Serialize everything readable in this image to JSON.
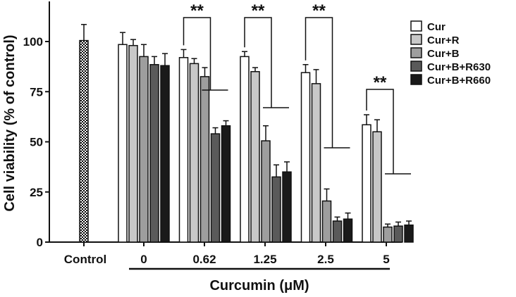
{
  "chart_data": {
    "type": "bar",
    "ylabel": "Cell viability (% of control)",
    "xlabel": "Curcumin (μM)",
    "ylim": [
      0,
      120
    ],
    "yticks": [
      0,
      25,
      50,
      75,
      100
    ],
    "control": {
      "label": "Control",
      "value": 100.5,
      "error": 8
    },
    "categories": [
      "0",
      "0.62",
      "1.25",
      "2.5",
      "5"
    ],
    "series": [
      {
        "name": "Cur",
        "values": [
          98.5,
          92,
          92.5,
          84.5,
          58.5
        ],
        "errors": [
          6,
          4,
          2.5,
          4,
          5
        ],
        "color": "#ffffff"
      },
      {
        "name": "Cur+R",
        "values": [
          98,
          89,
          85,
          79,
          55
        ],
        "errors": [
          3,
          2.5,
          2,
          7,
          6
        ],
        "color": "#c8c8c8"
      },
      {
        "name": "Cur+B",
        "values": [
          92.5,
          82.5,
          50.5,
          20.5,
          7.5
        ],
        "errors": [
          6,
          4.5,
          7.5,
          6,
          1.5
        ],
        "color": "#9e9e9e"
      },
      {
        "name": "Cur+B+R630",
        "values": [
          88.5,
          54,
          32.5,
          10.5,
          8
        ],
        "errors": [
          4,
          3,
          6,
          2,
          2
        ],
        "color": "#5a5a5a"
      },
      {
        "name": "Cur+B+R660",
        "values": [
          88,
          58,
          35,
          11.5,
          8.5
        ],
        "errors": [
          6,
          2.5,
          5,
          3,
          2
        ],
        "color": "#1a1a1a"
      }
    ],
    "significance": [
      {
        "category": "0.62",
        "label": "**"
      },
      {
        "category": "1.25",
        "label": "**"
      },
      {
        "category": "2.5",
        "label": "**"
      },
      {
        "category": "5",
        "label": "**"
      }
    ],
    "legend_position": "top-right",
    "grid": false
  }
}
